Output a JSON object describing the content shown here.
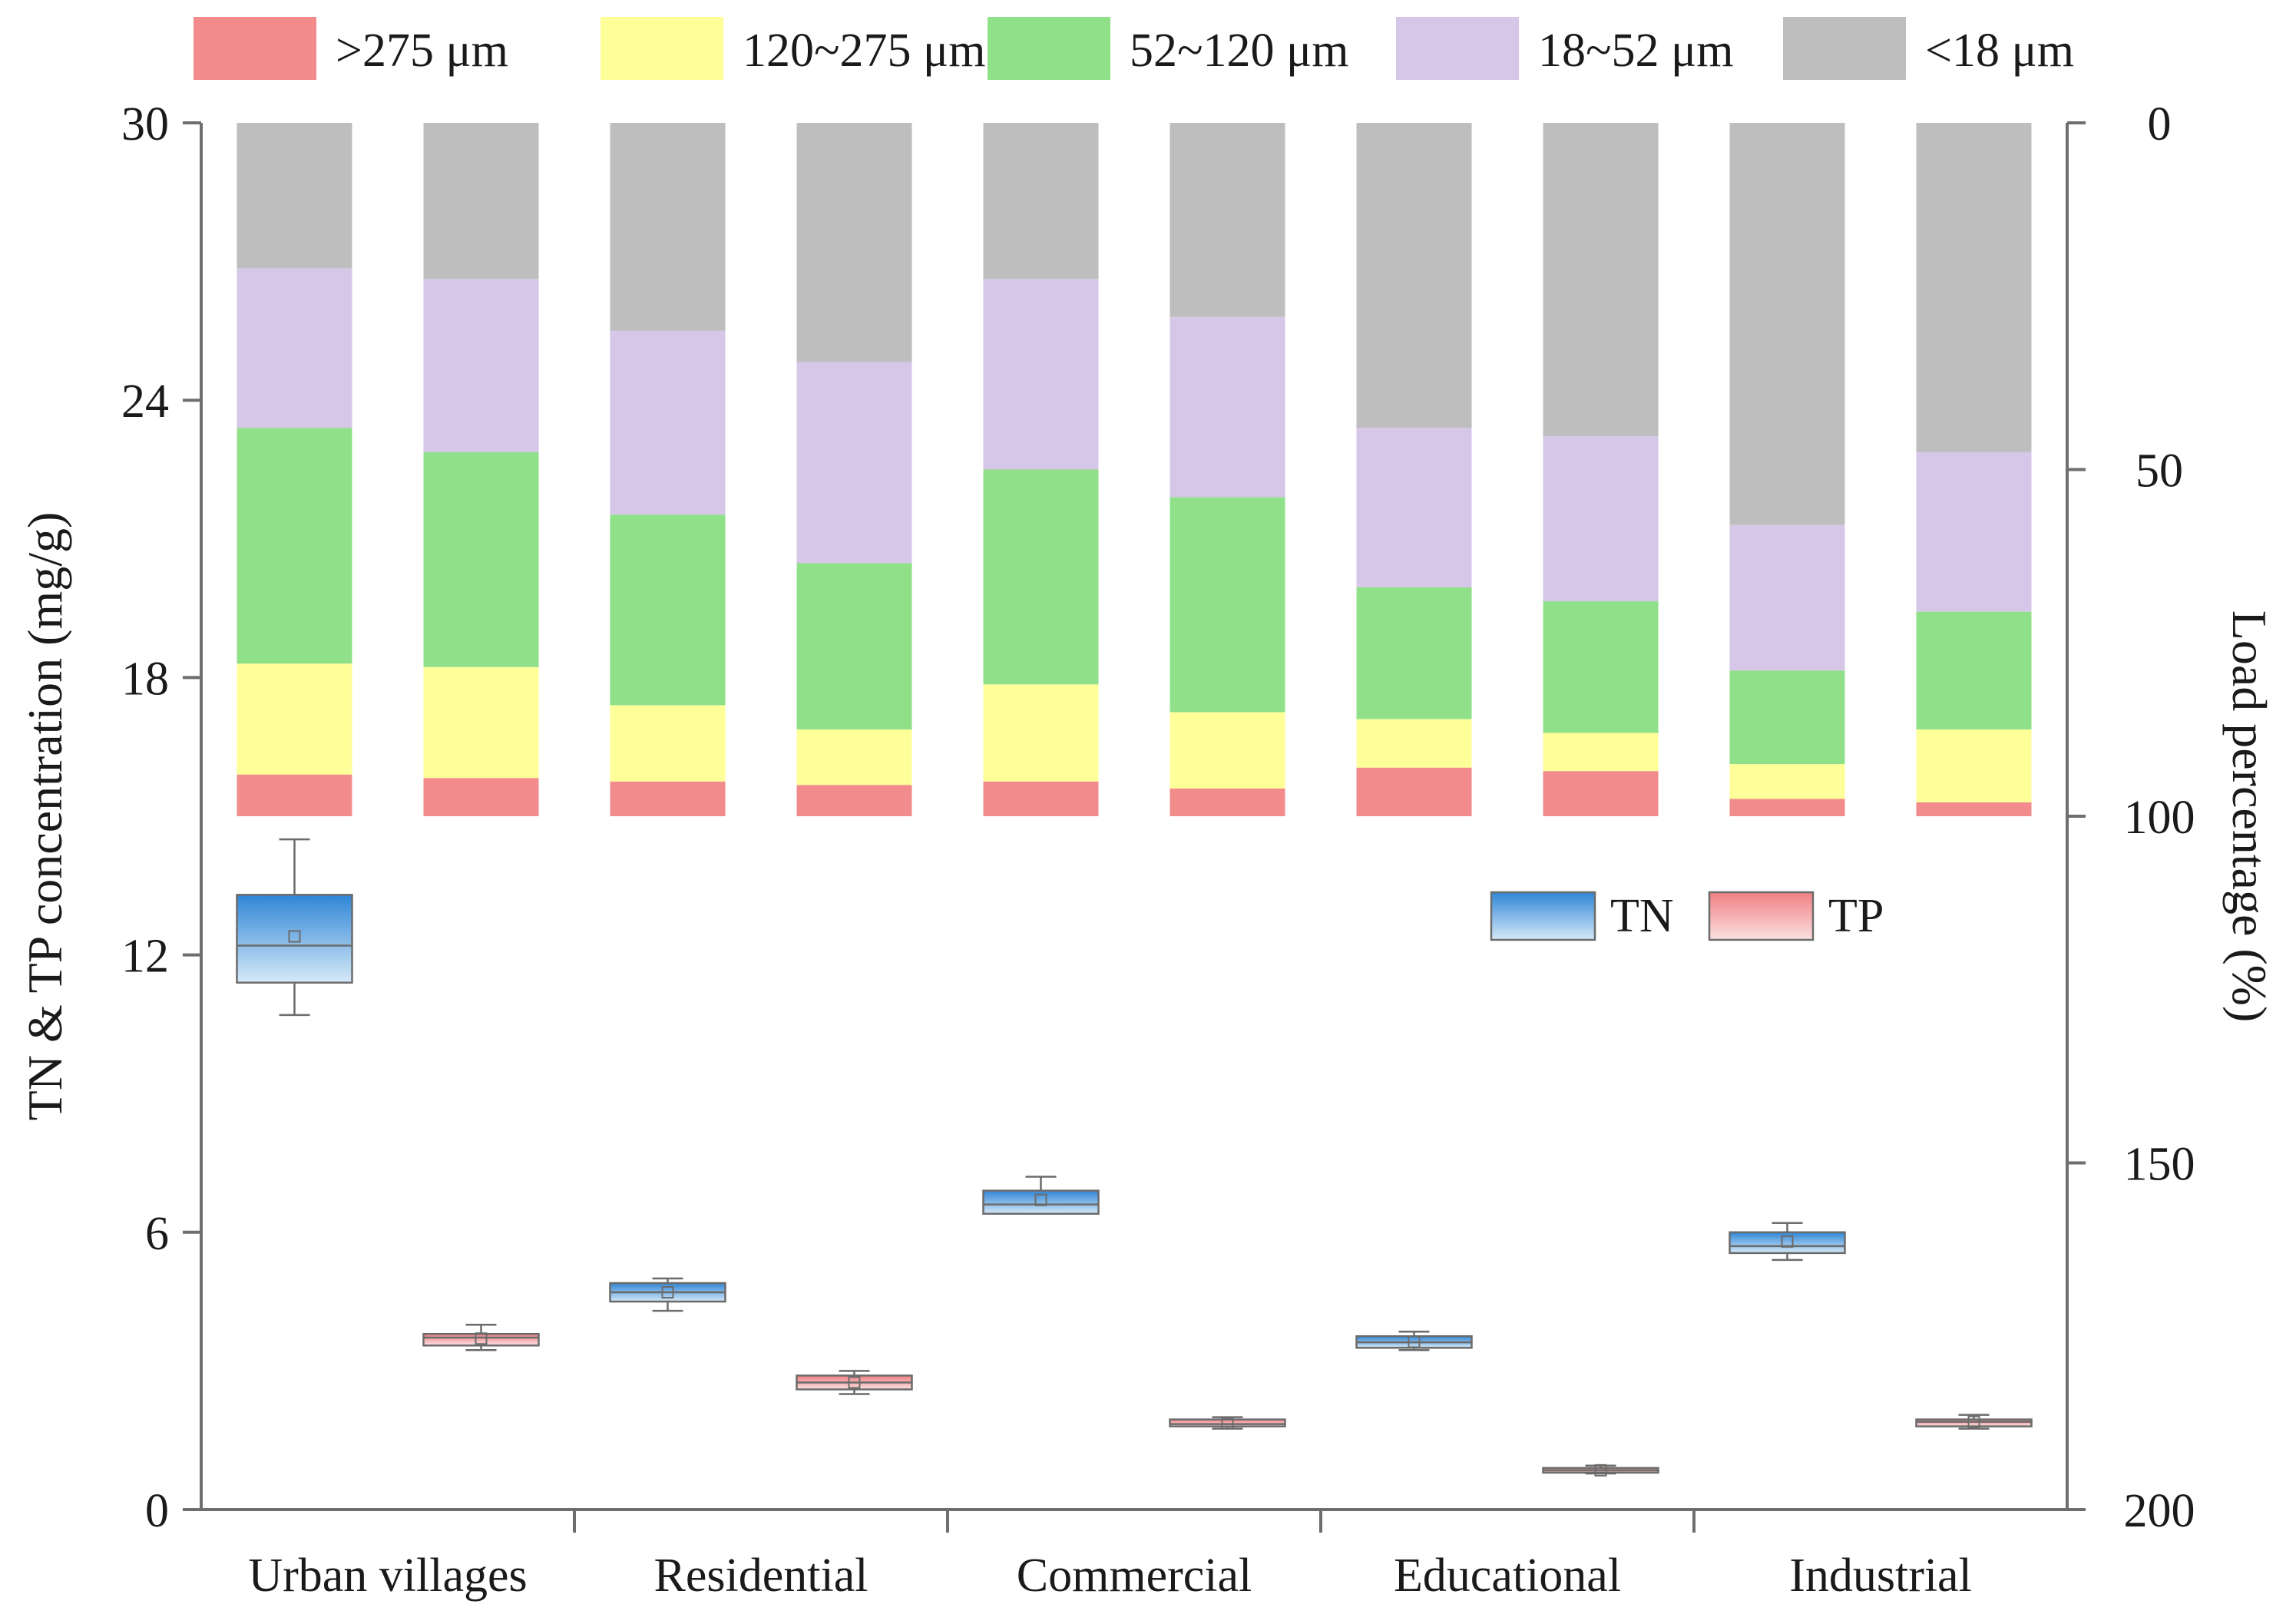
{
  "chart_data": {
    "type": "bar",
    "title": "",
    "categories": [
      "Urban villages",
      "Residential",
      "Commercial",
      "Educational",
      "Industrial"
    ],
    "land_use_pairs": [
      {
        "category": "Urban villages",
        "bars": [
          "TN",
          "TP"
        ]
      },
      {
        "category": "Residential",
        "bars": [
          "TN",
          "TP"
        ]
      },
      {
        "category": "Commercial",
        "bars": [
          "TN",
          "TP"
        ]
      },
      {
        "category": "Educational",
        "bars": [
          "TN",
          "TP"
        ]
      },
      {
        "category": "Industrial",
        "bars": [
          "TN",
          "TP"
        ]
      }
    ],
    "left_axis": {
      "label": "TN & TP concentration (mg/g)",
      "ylim": [
        0,
        30
      ],
      "ticks": [
        "0",
        "6",
        "12",
        "18",
        "24",
        "30"
      ]
    },
    "right_axis": {
      "label": "Load percentage (%)",
      "ylim": [
        0,
        200
      ],
      "inverted": true,
      "ticks": [
        "0",
        "50",
        "100",
        "150",
        "200"
      ]
    },
    "stack_legend": [
      {
        "name": ">275 μm",
        "color": "#f28b8b"
      },
      {
        "name": "120~275 μm",
        "color": "#ffff99"
      },
      {
        "name": "52~120 μm",
        "color": "#90e08a"
      },
      {
        "name": "18~52 μm",
        "color": "#d6c6e8"
      },
      {
        "name": "<18 μm",
        "color": "#bebebe"
      }
    ],
    "stacked_load_percentage": [
      {
        "label": "Urban villages TN",
        "values": [
          6,
          16,
          34,
          23,
          21
        ]
      },
      {
        "label": "Urban villages TP",
        "values": [
          5.5,
          16,
          31,
          25,
          22.5
        ]
      },
      {
        "label": "Residential TN",
        "values": [
          5,
          11,
          27.5,
          26.5,
          30
        ]
      },
      {
        "label": "Residential TP",
        "values": [
          4.5,
          8,
          24,
          29,
          34.5
        ]
      },
      {
        "label": "Commercial TN",
        "values": [
          5,
          14,
          31,
          27.5,
          22.5
        ]
      },
      {
        "label": "Commercial TP",
        "values": [
          4,
          11,
          31,
          26,
          28
        ]
      },
      {
        "label": "Educational TN",
        "values": [
          7,
          7,
          19,
          23,
          44
        ]
      },
      {
        "label": "Educational TP",
        "values": [
          6.5,
          5.5,
          19,
          23.8,
          45.2
        ]
      },
      {
        "label": "Industrial TN",
        "values": [
          2.5,
          5,
          13.5,
          21,
          58
        ]
      },
      {
        "label": "Industrial TP",
        "values": [
          2,
          10.5,
          17,
          23,
          47.5
        ]
      }
    ],
    "box_legend": [
      {
        "name": "TN",
        "color": "#3a8fd8"
      },
      {
        "name": "TP",
        "color": "#f08a8a"
      }
    ],
    "boxplots": [
      {
        "label": "Urban villages TN",
        "series": "TN",
        "min": 10.7,
        "q1": 11.4,
        "median": 12.2,
        "q3": 13.3,
        "max": 14.5,
        "mean": 12.4
      },
      {
        "label": "Urban villages TP",
        "series": "TP",
        "min": 3.45,
        "q1": 3.55,
        "median": 3.72,
        "q3": 3.8,
        "max": 4.0,
        "mean": 3.7
      },
      {
        "label": "Residential TN",
        "series": "TN",
        "min": 4.3,
        "q1": 4.5,
        "median": 4.7,
        "q3": 4.9,
        "max": 5.0,
        "mean": 4.7
      },
      {
        "label": "Residential TP",
        "series": "TP",
        "min": 2.5,
        "q1": 2.6,
        "median": 2.75,
        "q3": 2.9,
        "max": 3.0,
        "mean": 2.75
      },
      {
        "label": "Commercial TN",
        "series": "TN",
        "min": 6.4,
        "q1": 6.4,
        "median": 6.6,
        "q3": 6.9,
        "max": 7.2,
        "mean": 6.7
      },
      {
        "label": "Commercial TP",
        "series": "TP",
        "min": 1.75,
        "q1": 1.8,
        "median": 1.85,
        "q3": 1.95,
        "max": 2.0,
        "mean": 1.87
      },
      {
        "label": "Educational TN",
        "series": "TN",
        "min": 3.45,
        "q1": 3.5,
        "median": 3.62,
        "q3": 3.75,
        "max": 3.85,
        "mean": 3.63
      },
      {
        "label": "Educational TP",
        "series": "TP",
        "min": 0.78,
        "q1": 0.8,
        "median": 0.85,
        "q3": 0.9,
        "max": 0.95,
        "mean": 0.85
      },
      {
        "label": "Industrial TN",
        "series": "TN",
        "min": 5.4,
        "q1": 5.55,
        "median": 5.7,
        "q3": 6.0,
        "max": 6.2,
        "mean": 5.8
      },
      {
        "label": "Industrial TP",
        "series": "TP",
        "min": 1.75,
        "q1": 1.8,
        "median": 1.9,
        "q3": 1.95,
        "max": 2.05,
        "mean": 1.9
      }
    ]
  }
}
